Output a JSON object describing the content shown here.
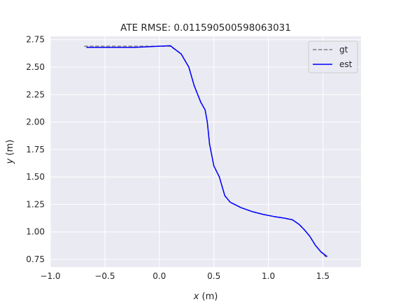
{
  "chart_data": {
    "type": "line",
    "title": "ATE RMSE: 0.011590500598063031",
    "xlabel_var": "x",
    "xlabel_unit": " (m)",
    "ylabel_var": "y",
    "ylabel_unit": " (m)",
    "xlim": [
      -1.0,
      1.85
    ],
    "ylim": [
      0.68,
      2.78
    ],
    "xticks": [
      -1.0,
      -0.5,
      0.0,
      0.5,
      1.0,
      1.5
    ],
    "xtick_labels": [
      "−1.0",
      "−0.5",
      "0.0",
      "0.5",
      "1.0",
      "1.5"
    ],
    "yticks": [
      0.75,
      1.0,
      1.25,
      1.5,
      1.75,
      2.0,
      2.25,
      2.5,
      2.75
    ],
    "ytick_labels": [
      "0.75",
      "1.00",
      "1.25",
      "1.50",
      "1.75",
      "2.00",
      "2.25",
      "2.50",
      "2.75"
    ],
    "grid": true,
    "legend_position": "top-right",
    "series": [
      {
        "name": "gt",
        "style": "dashed",
        "color": "#808080",
        "x": [
          -0.69,
          -0.5,
          -0.25,
          0.0,
          0.1,
          0.2,
          0.27,
          0.32,
          0.38,
          0.42,
          0.44,
          0.46,
          0.5,
          0.55,
          0.6,
          0.65,
          0.75,
          0.85,
          0.95,
          1.05,
          1.15,
          1.22,
          1.28,
          1.33,
          1.38,
          1.43,
          1.48,
          1.53
        ],
        "y": [
          2.69,
          2.69,
          2.69,
          2.69,
          2.69,
          2.62,
          2.5,
          2.33,
          2.18,
          2.11,
          2.0,
          1.8,
          1.6,
          1.5,
          1.33,
          1.27,
          1.22,
          1.185,
          1.16,
          1.14,
          1.125,
          1.11,
          1.07,
          1.02,
          0.96,
          0.88,
          0.82,
          0.77
        ]
      },
      {
        "name": "est",
        "style": "solid",
        "color": "#0000ff",
        "x": [
          -0.67,
          -0.5,
          -0.22,
          0.0,
          0.1,
          0.2,
          0.27,
          0.32,
          0.38,
          0.42,
          0.44,
          0.46,
          0.5,
          0.55,
          0.6,
          0.65,
          0.75,
          0.85,
          0.95,
          1.05,
          1.15,
          1.22,
          1.28,
          1.33,
          1.38,
          1.43,
          1.48,
          1.54
        ],
        "y": [
          2.68,
          2.68,
          2.68,
          2.69,
          2.695,
          2.62,
          2.5,
          2.33,
          2.18,
          2.11,
          2.0,
          1.8,
          1.6,
          1.5,
          1.33,
          1.27,
          1.22,
          1.185,
          1.16,
          1.14,
          1.125,
          1.11,
          1.07,
          1.02,
          0.96,
          0.88,
          0.82,
          0.775
        ]
      }
    ]
  }
}
